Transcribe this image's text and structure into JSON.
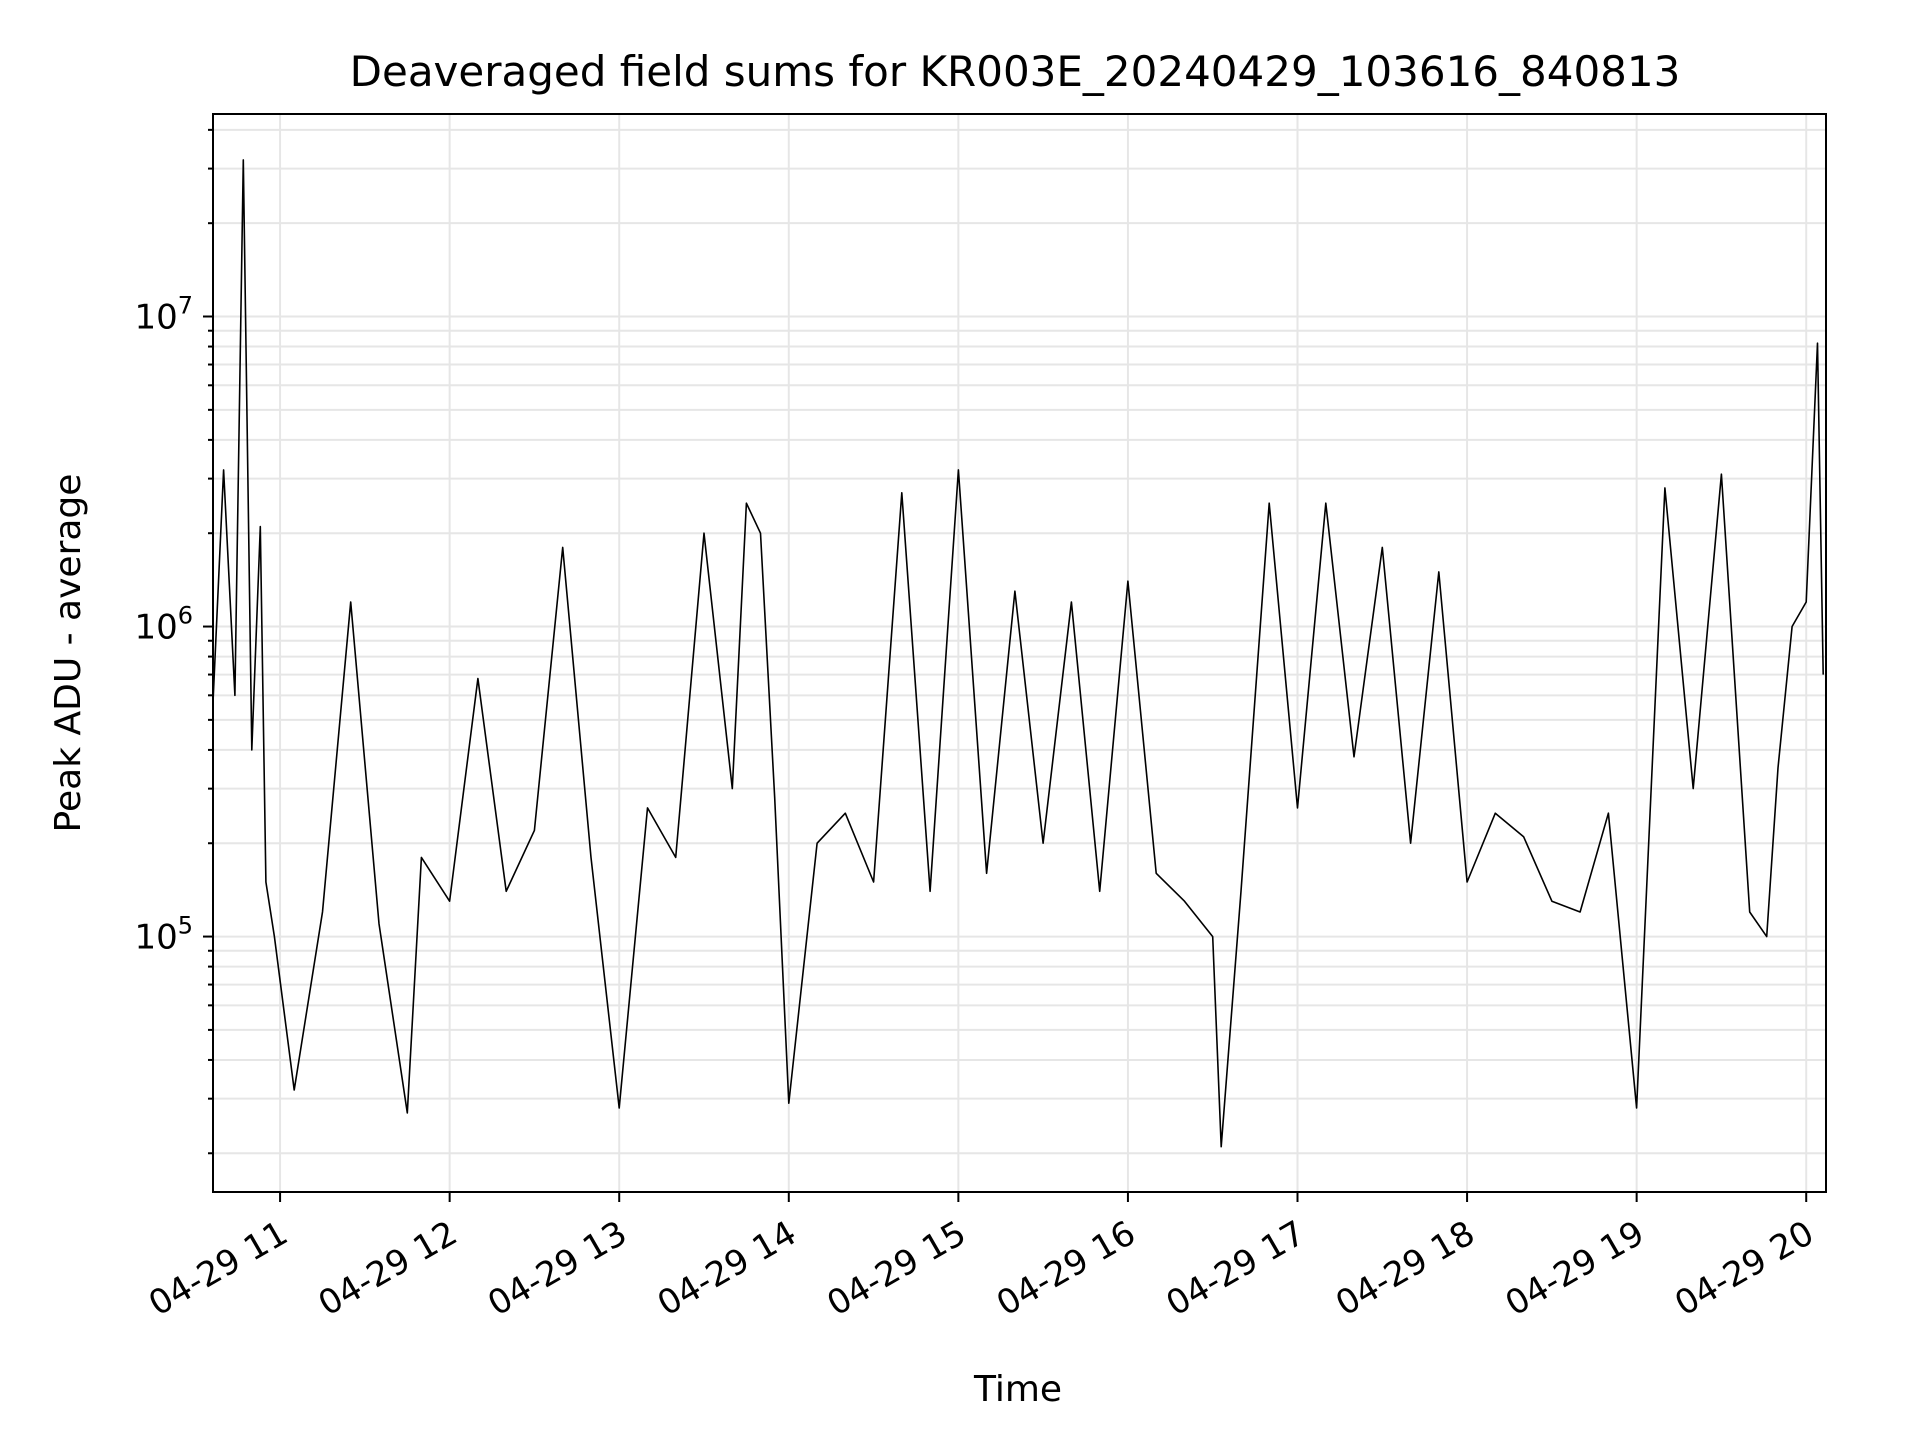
{
  "chart_data": {
    "type": "line",
    "title": "Deaveraged field sums for KR003E_20240429_103616_840813",
    "xlabel": "Time",
    "ylabel": "Peak ADU - average",
    "x_axis": {
      "kind": "datetime",
      "range": [
        "2024-04-29 10:36:16",
        "2024-04-29 20:07:00"
      ],
      "ticks": [
        "04-29 11",
        "04-29 12",
        "04-29 13",
        "04-29 14",
        "04-29 15",
        "04-29 16",
        "04-29 17",
        "04-29 18",
        "04-29 19",
        "04-29 20"
      ]
    },
    "y_axis": {
      "scale": "log",
      "range": [
        15000,
        45000000
      ],
      "ticks": [
        {
          "base": "10",
          "exp": "5",
          "value": 100000
        },
        {
          "base": "10",
          "exp": "6",
          "value": 1000000
        },
        {
          "base": "10",
          "exp": "7",
          "value": 10000000
        }
      ]
    },
    "grid": true,
    "line_color": "#000000",
    "series": [
      {
        "x": [
          "10:36",
          "10:40",
          "10:44",
          "10:47",
          "10:50",
          "10:53",
          "10:55",
          "10:58",
          "11:05",
          "11:15",
          "11:25",
          "11:35",
          "11:45",
          "11:50",
          "12:00",
          "12:10",
          "12:20",
          "12:30",
          "12:40",
          "12:50",
          "13:00",
          "13:10",
          "13:20",
          "13:30",
          "13:40",
          "13:45",
          "13:50",
          "13:55",
          "14:00",
          "14:10",
          "14:20",
          "14:30",
          "14:40",
          "14:50",
          "15:00",
          "15:10",
          "15:20",
          "15:30",
          "15:40",
          "15:50",
          "16:00",
          "16:10",
          "16:20",
          "16:30",
          "16:33",
          "16:40",
          "16:50",
          "17:00",
          "17:10",
          "17:20",
          "17:30",
          "17:40",
          "17:50",
          "18:00",
          "18:10",
          "18:20",
          "18:30",
          "18:40",
          "18:50",
          "19:00",
          "19:10",
          "19:20",
          "19:30",
          "19:40",
          "19:46",
          "19:50",
          "19:55",
          "20:00",
          "20:04",
          "20:06"
        ],
        "y": [
          500000,
          3200000,
          600000,
          32000000,
          400000,
          2100000,
          150000,
          100000,
          32000,
          120000,
          1200000,
          110000,
          27000,
          180000,
          130000,
          680000,
          140000,
          220000,
          1800000,
          180000,
          28000,
          260000,
          180000,
          2000000,
          300000,
          2500000,
          2000000,
          280000,
          29000,
          200000,
          250000,
          150000,
          2700000,
          140000,
          3200000,
          160000,
          1300000,
          200000,
          1200000,
          140000,
          1400000,
          160000,
          130000,
          100000,
          21000,
          140000,
          2500000,
          260000,
          2500000,
          380000,
          1800000,
          200000,
          1500000,
          150000,
          250000,
          210000,
          130000,
          120000,
          250000,
          28000,
          2800000,
          300000,
          3100000,
          120000,
          100000,
          350000,
          1000000,
          1200000,
          8200000,
          700000
        ]
      }
    ]
  }
}
